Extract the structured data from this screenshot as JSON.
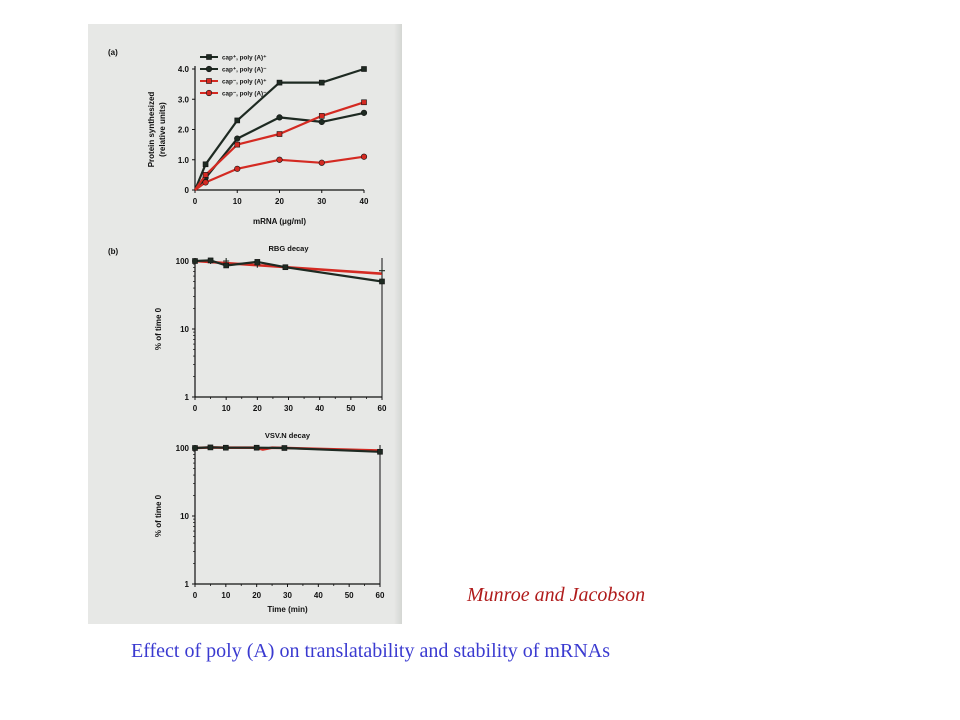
{
  "caption": "Effect of poly (A) on translatability and stability of mRNAs",
  "credit": "Munroe and Jacobson",
  "colors": {
    "dark": "#1e2a22",
    "red": "#d42a22",
    "panel_bg": "#e7e8e6",
    "caption": "#3a3ad0",
    "credit": "#b01c1c"
  },
  "chart_data": [
    {
      "panel_label": "(a)",
      "type": "line",
      "title": "",
      "xlabel": "mRNA (μg/ml)",
      "ylabel": "Protein synthesized (relative units)",
      "xlim": [
        0,
        40
      ],
      "ylim": [
        0,
        4.0
      ],
      "xticks": [
        "0",
        "10",
        "20",
        "30",
        "40"
      ],
      "yticks": [
        "0",
        "1.0",
        "2.0",
        "3.0",
        "4.0"
      ],
      "legend_position": "top-left",
      "series": [
        {
          "name": "cap⁺, poly (A)⁺",
          "color": "#1e2a22",
          "marker": "square",
          "x": [
            0,
            2.5,
            10,
            20,
            30,
            40
          ],
          "y": [
            0,
            0.85,
            2.3,
            3.55,
            3.55,
            4.0
          ]
        },
        {
          "name": "cap⁺, poly (A)⁻",
          "color": "#1e2a22",
          "marker": "circle",
          "x": [
            0,
            2.5,
            10,
            20,
            30,
            40
          ],
          "y": [
            0,
            0.4,
            1.7,
            2.4,
            2.25,
            2.55
          ]
        },
        {
          "name": "cap⁻, poly (A)⁺",
          "color": "#d42a22",
          "marker": "square",
          "x": [
            0,
            2.5,
            10,
            20,
            30,
            40
          ],
          "y": [
            0,
            0.5,
            1.5,
            1.85,
            2.45,
            2.9
          ]
        },
        {
          "name": "cap⁻, poly (A)⁻",
          "color": "#d42a22",
          "marker": "circle",
          "x": [
            0,
            2.5,
            10,
            20,
            30,
            40
          ],
          "y": [
            0,
            0.25,
            0.7,
            1.0,
            0.9,
            1.1
          ]
        }
      ]
    },
    {
      "panel_label": "(b)",
      "type": "line",
      "title": "RBG decay",
      "xlabel": "",
      "ylabel": "% of time 0",
      "xlim": [
        0,
        60
      ],
      "ylim": [
        1,
        100
      ],
      "yscale": "log",
      "xticks": [
        "0",
        "10",
        "20",
        "30",
        "40",
        "50",
        "60"
      ],
      "yticks": [
        "1",
        "10",
        "100"
      ],
      "series": [
        {
          "color": "#d42a22",
          "marker": "none",
          "x": [
            0,
            60
          ],
          "y": [
            100,
            65
          ]
        },
        {
          "color": "#1e2a22",
          "marker": "square",
          "x": [
            0,
            5,
            10,
            20,
            29,
            60
          ],
          "y": [
            100,
            102,
            86,
            97,
            81,
            50
          ]
        },
        {
          "color": "#1e2a22",
          "marker": "plus",
          "x": [
            5,
            10,
            20,
            60
          ],
          "y": [
            100,
            100,
            88,
            72
          ]
        }
      ]
    },
    {
      "panel_label": "",
      "type": "line",
      "title": "VSV.N decay",
      "xlabel": "Time (min)",
      "ylabel": "% of time 0",
      "xlim": [
        0,
        60
      ],
      "ylim": [
        1,
        100
      ],
      "yscale": "log",
      "xticks": [
        "0",
        "10",
        "20",
        "30",
        "40",
        "50",
        "60"
      ],
      "yticks": [
        "1",
        "10",
        "100"
      ],
      "series": [
        {
          "color": "#d42a22",
          "marker": "none",
          "x": [
            0,
            5,
            10,
            20,
            22,
            25,
            30,
            60
          ],
          "y": [
            100,
            102,
            101,
            101,
            95,
            101,
            100,
            92
          ]
        },
        {
          "color": "#1e2a22",
          "marker": "square",
          "x": [
            0,
            5,
            10,
            20,
            29,
            60
          ],
          "y": [
            100,
            102,
            101,
            101,
            100,
            88
          ]
        }
      ]
    }
  ]
}
